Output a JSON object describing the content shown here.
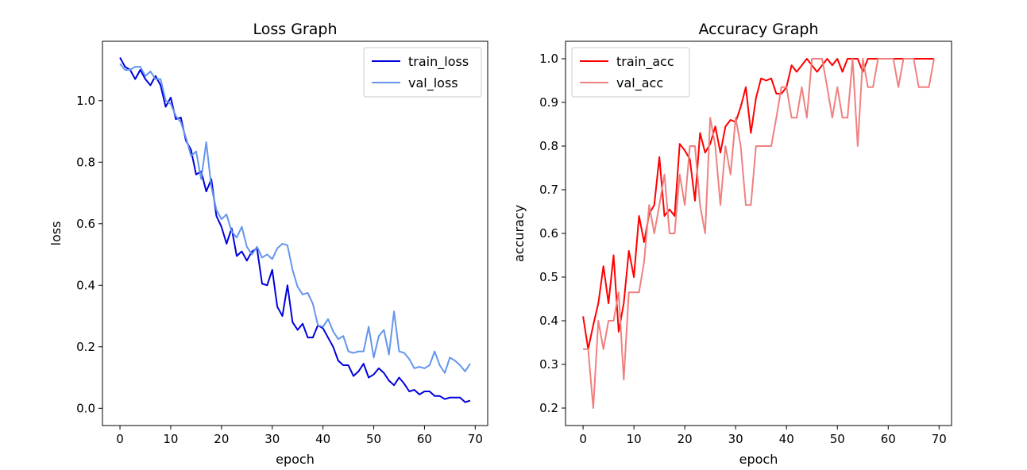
{
  "chart_data": [
    {
      "type": "line",
      "title": "Loss Graph",
      "xlabel": "epoch",
      "ylabel": "loss",
      "xlim": [
        -3.45,
        72.45
      ],
      "ylim": [
        -0.056,
        1.193
      ],
      "xticks": [
        0,
        10,
        20,
        30,
        40,
        50,
        60,
        70
      ],
      "yticks": [
        0.0,
        0.2,
        0.4,
        0.6,
        0.8,
        1.0
      ],
      "ytick_decimals": 1,
      "grid": false,
      "legend": "top-right",
      "series": [
        {
          "name": "train_loss",
          "color": "#0000dd",
          "values": [
            1.14,
            1.11,
            1.1,
            1.07,
            1.1,
            1.07,
            1.05,
            1.08,
            1.05,
            0.98,
            1.01,
            0.94,
            0.945,
            0.87,
            0.84,
            0.76,
            0.77,
            0.705,
            0.745,
            0.625,
            0.59,
            0.535,
            0.585,
            0.495,
            0.51,
            0.48,
            0.51,
            0.52,
            0.405,
            0.4,
            0.45,
            0.33,
            0.3,
            0.4,
            0.28,
            0.255,
            0.275,
            0.23,
            0.23,
            0.27,
            0.26,
            0.23,
            0.2,
            0.155,
            0.14,
            0.14,
            0.105,
            0.12,
            0.145,
            0.1,
            0.11,
            0.13,
            0.115,
            0.09,
            0.075,
            0.1,
            0.08,
            0.055,
            0.06,
            0.045,
            0.055,
            0.055,
            0.04,
            0.04,
            0.03,
            0.035,
            0.035,
            0.035,
            0.02,
            0.025
          ]
        },
        {
          "name": "val_loss",
          "color": "#6495ed",
          "values": [
            1.12,
            1.1,
            1.1,
            1.11,
            1.11,
            1.08,
            1.095,
            1.07,
            1.07,
            1.0,
            0.99,
            0.95,
            0.93,
            0.88,
            0.82,
            0.835,
            0.745,
            0.865,
            0.72,
            0.645,
            0.615,
            0.63,
            0.575,
            0.555,
            0.59,
            0.525,
            0.5,
            0.525,
            0.49,
            0.5,
            0.485,
            0.52,
            0.535,
            0.53,
            0.45,
            0.395,
            0.37,
            0.375,
            0.34,
            0.27,
            0.265,
            0.29,
            0.25,
            0.225,
            0.235,
            0.185,
            0.18,
            0.185,
            0.185,
            0.265,
            0.165,
            0.235,
            0.255,
            0.175,
            0.315,
            0.185,
            0.18,
            0.16,
            0.13,
            0.135,
            0.13,
            0.14,
            0.185,
            0.14,
            0.115,
            0.165,
            0.155,
            0.14,
            0.12,
            0.145
          ]
        }
      ]
    },
    {
      "type": "line",
      "title": "Accuracy Graph",
      "xlabel": "epoch",
      "ylabel": "accuracy",
      "xlim": [
        -3.45,
        72.45
      ],
      "ylim": [
        0.16,
        1.04
      ],
      "xticks": [
        0,
        10,
        20,
        30,
        40,
        50,
        60,
        70
      ],
      "yticks": [
        0.2,
        0.3,
        0.4,
        0.5,
        0.6,
        0.7,
        0.8,
        0.9,
        1.0
      ],
      "ytick_decimals": 1,
      "grid": false,
      "legend": "top-left",
      "series": [
        {
          "name": "train_acc",
          "color": "#ff0000",
          "values": [
            0.41,
            0.335,
            0.39,
            0.44,
            0.525,
            0.44,
            0.55,
            0.375,
            0.44,
            0.56,
            0.5,
            0.64,
            0.58,
            0.645,
            0.665,
            0.775,
            0.64,
            0.655,
            0.64,
            0.805,
            0.79,
            0.77,
            0.675,
            0.83,
            0.785,
            0.805,
            0.845,
            0.785,
            0.845,
            0.86,
            0.855,
            0.89,
            0.935,
            0.83,
            0.91,
            0.955,
            0.95,
            0.955,
            0.92,
            0.92,
            0.935,
            0.985,
            0.97,
            0.985,
            1.0,
            0.985,
            0.97,
            0.985,
            1.0,
            0.985,
            1.0,
            0.97,
            1.0,
            1.0,
            1.0,
            0.97,
            1.0,
            1.0,
            1.0,
            1.0,
            1.0,
            1.0,
            1.0,
            1.0,
            1.0,
            1.0,
            1.0,
            1.0,
            1.0,
            1.0
          ]
        },
        {
          "name": "val_acc",
          "color": "#f08080",
          "values": [
            0.335,
            0.335,
            0.2,
            0.4,
            0.335,
            0.4,
            0.4,
            0.465,
            0.265,
            0.465,
            0.465,
            0.465,
            0.535,
            0.665,
            0.6,
            0.665,
            0.735,
            0.6,
            0.6,
            0.735,
            0.665,
            0.8,
            0.8,
            0.665,
            0.6,
            0.865,
            0.8,
            0.665,
            0.8,
            0.735,
            0.865,
            0.8,
            0.665,
            0.665,
            0.8,
            0.8,
            0.8,
            0.8,
            0.865,
            0.935,
            0.935,
            0.865,
            0.865,
            0.935,
            0.865,
            1.0,
            1.0,
            1.0,
            0.935,
            0.865,
            0.935,
            0.865,
            0.865,
            1.0,
            0.8,
            1.0,
            0.935,
            0.935,
            1.0,
            1.0,
            1.0,
            1.0,
            0.935,
            1.0,
            1.0,
            1.0,
            0.935,
            0.935,
            0.935,
            1.0
          ]
        }
      ]
    }
  ]
}
